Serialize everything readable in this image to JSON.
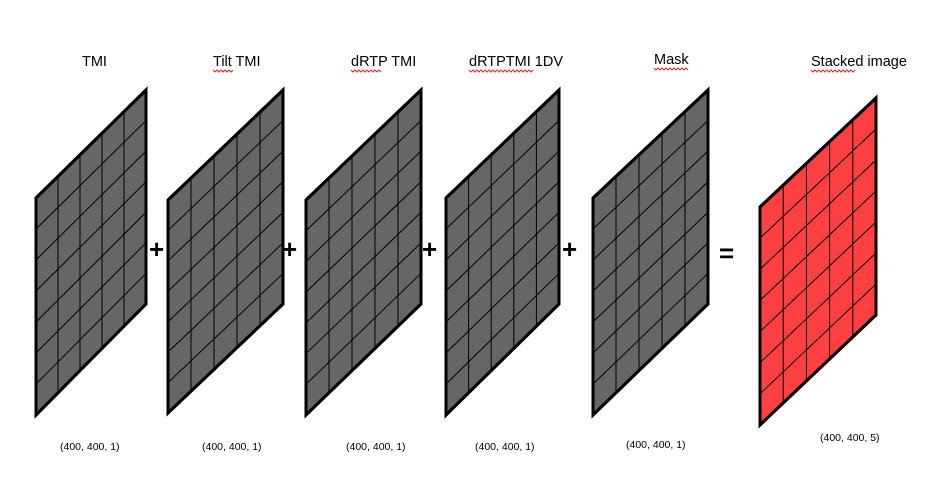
{
  "colors": {
    "input_fill": "#666666",
    "output_fill": "#ff4040",
    "stroke": "#000000",
    "spellcheck": "#e0262b"
  },
  "panels": [
    {
      "title": "TMI",
      "dims": "(400, 400, 1)",
      "kind": "input"
    },
    {
      "title": "Tilt TMI",
      "dims": "(400, 400, 1)",
      "kind": "input"
    },
    {
      "title": "dRTP TMI",
      "dims": "(400, 400, 1)",
      "kind": "input"
    },
    {
      "title": "dRTPTMI 1DV",
      "dims": "(400, 400, 1)",
      "kind": "input"
    },
    {
      "title": "Mask",
      "dims": "(400, 400, 1)",
      "kind": "input"
    },
    {
      "title": "Stacked image",
      "dims": "(400, 400, 5)",
      "kind": "output"
    }
  ],
  "operators": [
    "+",
    "+",
    "+",
    "+",
    "="
  ]
}
